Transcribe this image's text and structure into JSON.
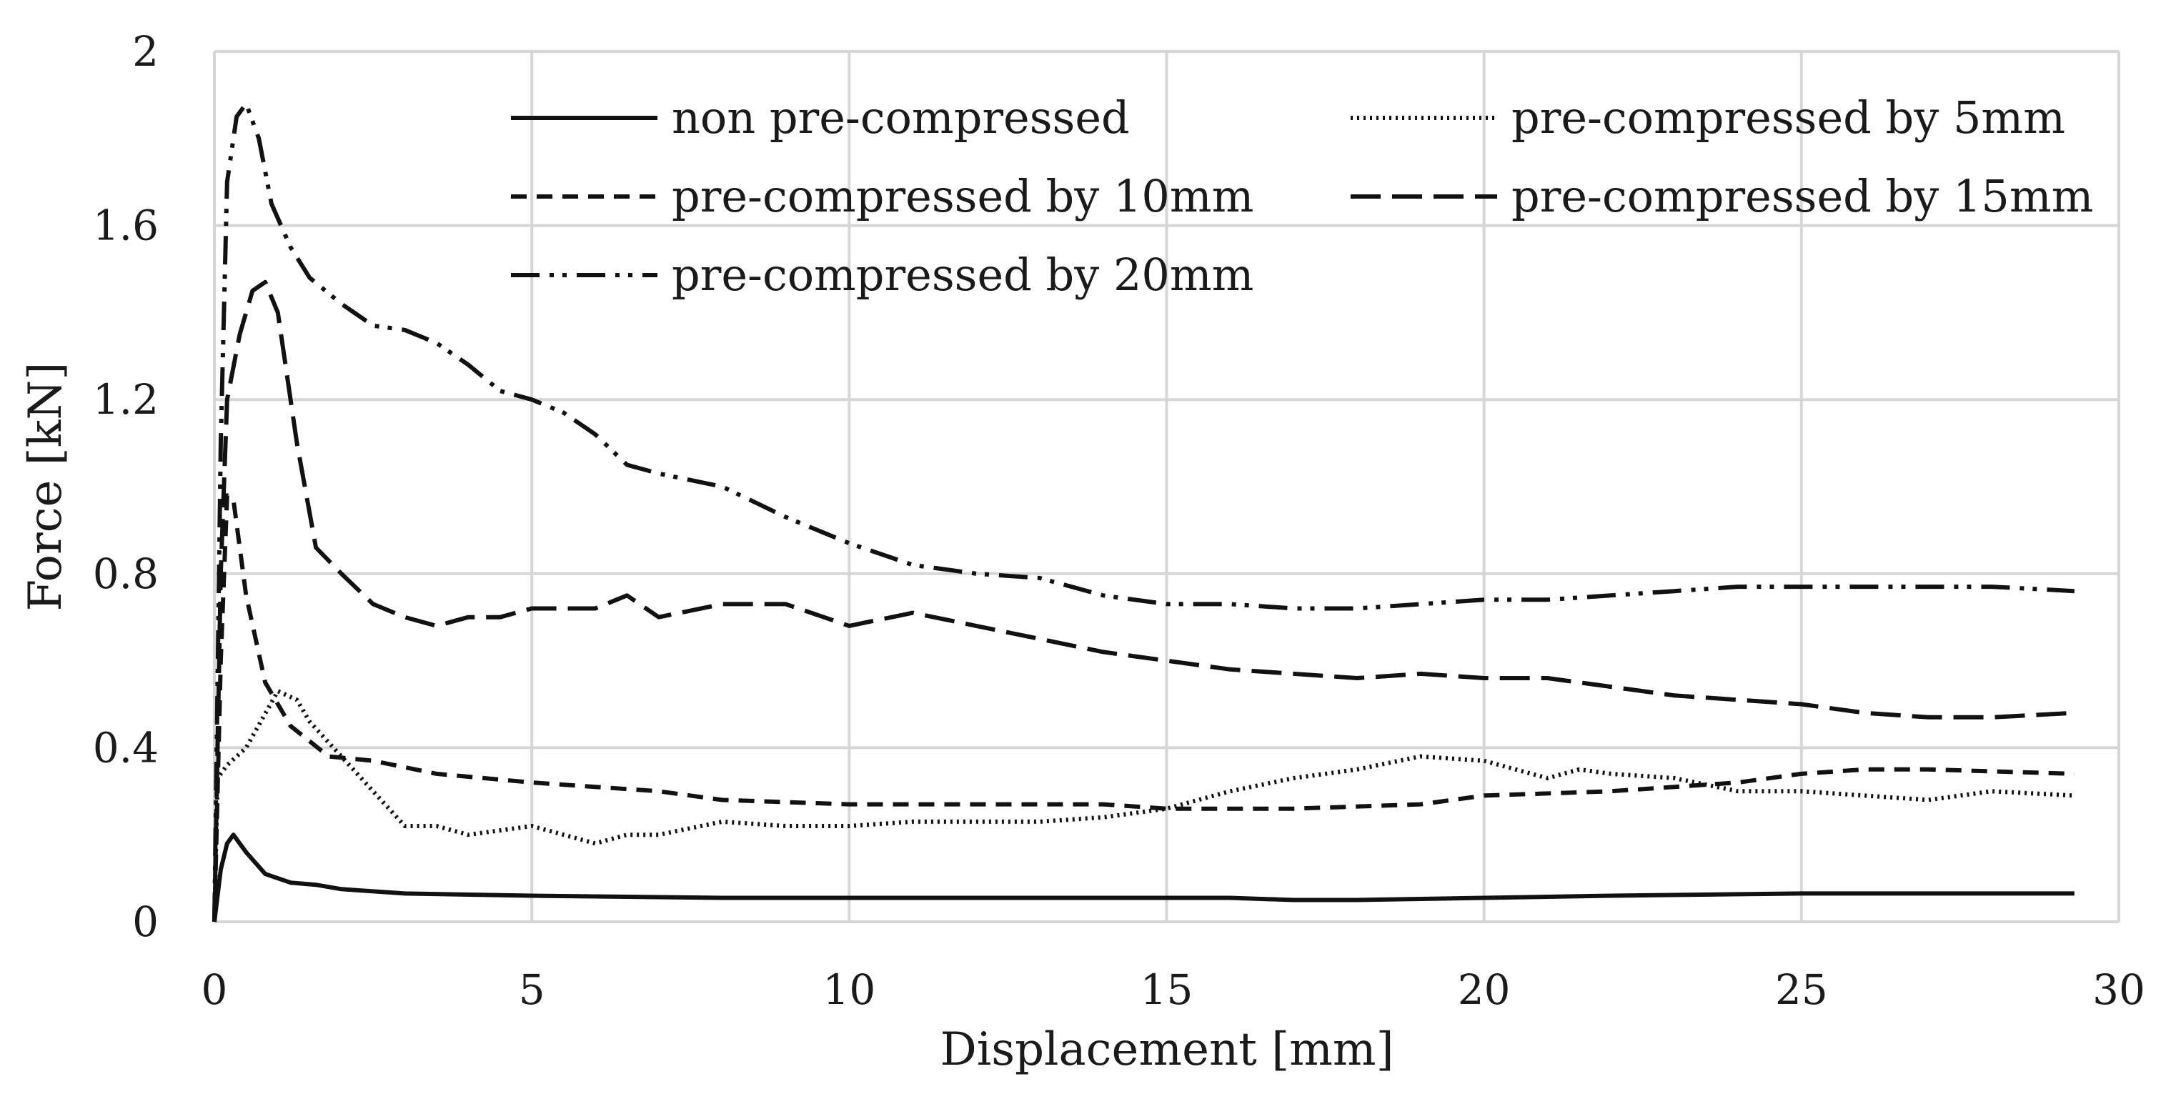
{
  "chart_data": {
    "type": "line",
    "title": "",
    "xlabel": "Displacement [mm]",
    "ylabel": "Force [kN]",
    "xlim": [
      0,
      30
    ],
    "ylim": [
      0,
      2
    ],
    "xticks": [
      0,
      5,
      10,
      15,
      20,
      25,
      30
    ],
    "yticks": [
      0,
      0.4,
      0.8,
      1.2,
      1.6,
      2
    ],
    "xtick_labels": [
      "0",
      "5",
      "10",
      "15",
      "20",
      "25",
      "30"
    ],
    "ytick_labels": [
      "0",
      "0.4",
      "0.8",
      "1.2",
      "1.6",
      "2"
    ],
    "grid": true,
    "legend_position": "top-right",
    "series": [
      {
        "name": "non pre-compressed",
        "style": "solid",
        "x": [
          0,
          0.1,
          0.2,
          0.3,
          0.5,
          0.8,
          1.2,
          1.6,
          2,
          3,
          5,
          8,
          10,
          13,
          15,
          16,
          17,
          18,
          20,
          22,
          25,
          27,
          29.3
        ],
        "y": [
          0,
          0.12,
          0.18,
          0.2,
          0.16,
          0.11,
          0.09,
          0.085,
          0.075,
          0.065,
          0.06,
          0.055,
          0.055,
          0.055,
          0.055,
          0.055,
          0.05,
          0.05,
          0.055,
          0.06,
          0.065,
          0.065,
          0.065
        ]
      },
      {
        "name": "pre-compressed by 5mm",
        "style": "dotted",
        "x": [
          0,
          0.05,
          0.2,
          0.5,
          1,
          1.3,
          1.5,
          2,
          2.5,
          3,
          3.5,
          4,
          5,
          5.5,
          6,
          6.5,
          7,
          8,
          9,
          10,
          11,
          12,
          13,
          14,
          15,
          16,
          17,
          18,
          19,
          20,
          21,
          21.5,
          22,
          23,
          24,
          25,
          26,
          27,
          28,
          29.3
        ],
        "y": [
          0,
          0.33,
          0.36,
          0.4,
          0.53,
          0.51,
          0.46,
          0.38,
          0.3,
          0.22,
          0.22,
          0.2,
          0.22,
          0.2,
          0.18,
          0.2,
          0.2,
          0.23,
          0.22,
          0.22,
          0.23,
          0.23,
          0.23,
          0.24,
          0.26,
          0.3,
          0.33,
          0.35,
          0.38,
          0.37,
          0.33,
          0.35,
          0.34,
          0.33,
          0.3,
          0.3,
          0.29,
          0.28,
          0.3,
          0.29
        ]
      },
      {
        "name": "pre-compressed by 10mm",
        "style": "dashed",
        "x": [
          0,
          0.1,
          0.2,
          0.3,
          0.5,
          0.8,
          1.2,
          1.8,
          2.5,
          3.5,
          5,
          7,
          8,
          10,
          12,
          14,
          15,
          17,
          19,
          20,
          22,
          24,
          25,
          26,
          27,
          29.3
        ],
        "y": [
          0,
          0.6,
          0.98,
          0.97,
          0.75,
          0.55,
          0.45,
          0.38,
          0.37,
          0.34,
          0.32,
          0.3,
          0.28,
          0.27,
          0.27,
          0.27,
          0.26,
          0.26,
          0.27,
          0.29,
          0.3,
          0.32,
          0.34,
          0.35,
          0.35,
          0.34
        ]
      },
      {
        "name": "pre-compressed by 15mm",
        "style": "long-dashed",
        "x": [
          0,
          0.1,
          0.2,
          0.4,
          0.6,
          0.8,
          1,
          1.3,
          1.6,
          2,
          2.5,
          3,
          3.5,
          4,
          4.5,
          5,
          6,
          6.5,
          7,
          8,
          9,
          10,
          11,
          12,
          13,
          14,
          15,
          16,
          17,
          18,
          19,
          20,
          21,
          22,
          23,
          24,
          25,
          26,
          27,
          28,
          29.3
        ],
        "y": [
          0,
          0.8,
          1.2,
          1.35,
          1.45,
          1.47,
          1.4,
          1.1,
          0.86,
          0.8,
          0.73,
          0.7,
          0.68,
          0.7,
          0.7,
          0.72,
          0.72,
          0.75,
          0.7,
          0.73,
          0.73,
          0.68,
          0.71,
          0.68,
          0.65,
          0.62,
          0.6,
          0.58,
          0.57,
          0.56,
          0.57,
          0.56,
          0.56,
          0.54,
          0.52,
          0.51,
          0.5,
          0.48,
          0.47,
          0.47,
          0.48
        ]
      },
      {
        "name": "pre-compressed by 20mm",
        "style": "dash-dot-dot",
        "x": [
          0,
          0.1,
          0.2,
          0.35,
          0.5,
          0.7,
          0.9,
          1.2,
          1.5,
          2,
          2.5,
          3,
          3.5,
          4,
          4.5,
          5,
          5.5,
          6,
          6.5,
          7,
          8,
          9,
          10,
          11,
          12,
          13,
          14,
          15,
          16,
          17,
          18,
          19,
          20,
          21,
          22,
          23,
          24,
          25,
          26,
          27,
          28,
          29.3
        ],
        "y": [
          0,
          1.1,
          1.7,
          1.85,
          1.88,
          1.8,
          1.65,
          1.55,
          1.48,
          1.42,
          1.37,
          1.36,
          1.33,
          1.28,
          1.22,
          1.2,
          1.17,
          1.12,
          1.05,
          1.03,
          1.0,
          0.93,
          0.87,
          0.82,
          0.8,
          0.79,
          0.75,
          0.73,
          0.73,
          0.72,
          0.72,
          0.73,
          0.74,
          0.74,
          0.75,
          0.76,
          0.77,
          0.77,
          0.77,
          0.77,
          0.77,
          0.76
        ]
      }
    ]
  }
}
